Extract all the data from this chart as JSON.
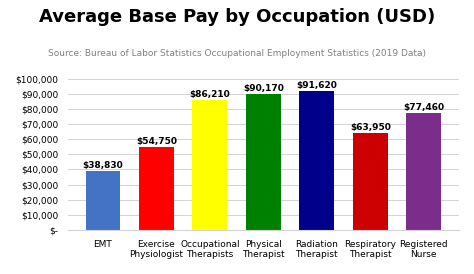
{
  "title": "Average Base Pay by Occupation (USD)",
  "subtitle": "Source: Bureau of Labor Statistics Occupational Employment Statistics (2019 Data)",
  "categories": [
    "EMT",
    "Exercise\nPhysiologist",
    "Occupational\nTherapists",
    "Physical\nTherapist",
    "Radiation\nTherapist",
    "Respiratory\nTherapist",
    "Registered\nNurse"
  ],
  "values": [
    38830,
    54750,
    86210,
    90170,
    91620,
    63950,
    77460
  ],
  "bar_colors": [
    "#4472C4",
    "#FF0000",
    "#FFFF00",
    "#008000",
    "#00008B",
    "#CC0000",
    "#7B2D8B"
  ],
  "labels": [
    "$38,830",
    "$54,750",
    "$86,210",
    "$90,170",
    "$91,620",
    "$63,950",
    "$77,460"
  ],
  "ylim": [
    0,
    100000
  ],
  "yticks": [
    0,
    10000,
    20000,
    30000,
    40000,
    50000,
    60000,
    70000,
    80000,
    90000,
    100000
  ],
  "ytick_labels": [
    "$-",
    "$10,000",
    "$20,000",
    "$30,000",
    "$40,000",
    "$50,000",
    "$60,000",
    "$70,000",
    "$80,000",
    "$90,000",
    "$100,000"
  ],
  "background_color": "#FFFFFF",
  "title_fontsize": 13,
  "subtitle_fontsize": 6.5,
  "tick_fontsize": 6.5,
  "bar_label_fontsize": 6.5
}
